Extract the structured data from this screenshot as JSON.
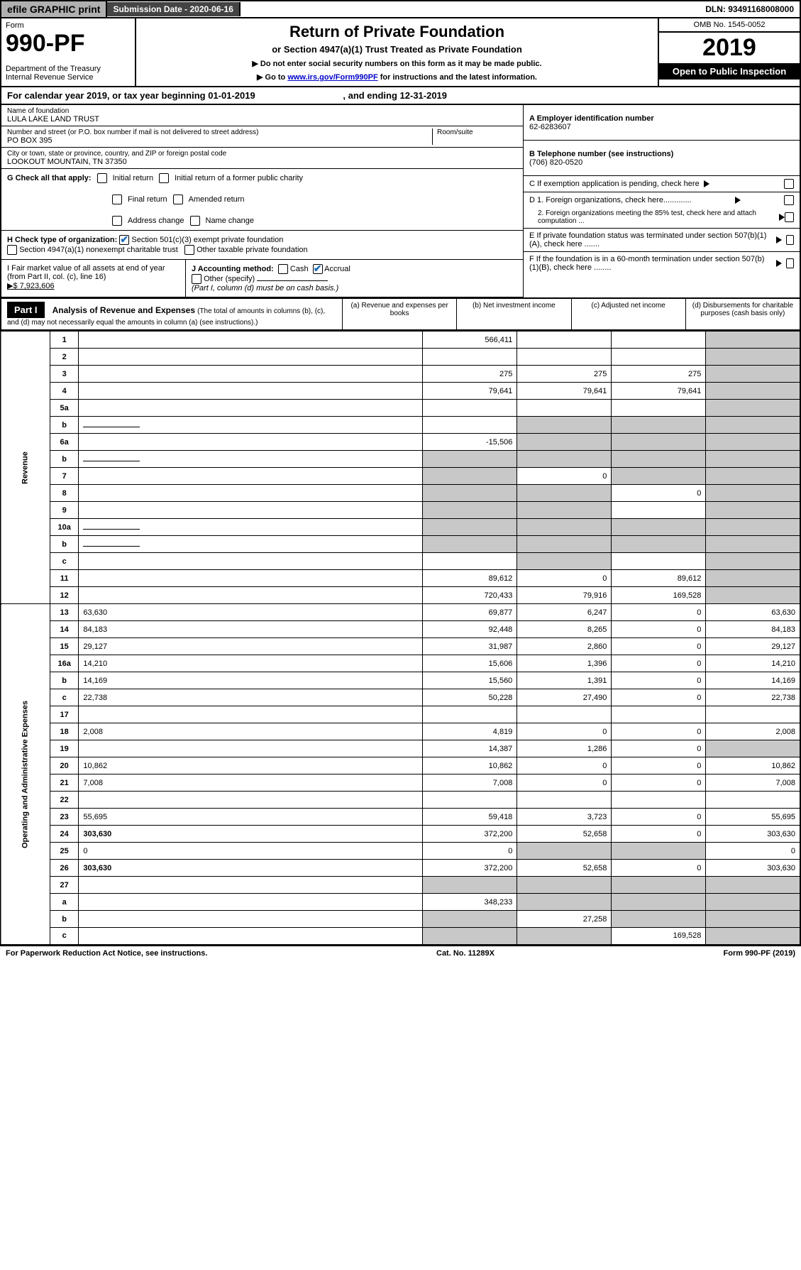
{
  "top": {
    "efile": "efile GRAPHIC print",
    "sub_label": "Submission Date - 2020-06-16",
    "dln": "DLN: 93491168008000"
  },
  "header": {
    "form_label": "Form",
    "form_num": "990-PF",
    "dept": "Department of the Treasury\nInternal Revenue Service",
    "title": "Return of Private Foundation",
    "subtitle": "or Section 4947(a)(1) Trust Treated as Private Foundation",
    "instr1": "▶ Do not enter social security numbers on this form as it may be made public.",
    "instr2": "▶ Go to ",
    "instr2_link": "www.irs.gov/Form990PF",
    "instr2_rest": " for instructions and the latest information.",
    "omb": "OMB No. 1545-0052",
    "year": "2019",
    "open": "Open to Public Inspection"
  },
  "cal": {
    "text": "For calendar year 2019, or tax year beginning 01-01-2019",
    "end": ", and ending 12-31-2019"
  },
  "org": {
    "name_label": "Name of foundation",
    "name": "LULA LAKE LAND TRUST",
    "addr_label": "Number and street (or P.O. box number if mail is not delivered to street address)",
    "addr": "PO BOX 395",
    "room_label": "Room/suite",
    "city_label": "City or town, state or province, country, and ZIP or foreign postal code",
    "city": "LOOKOUT MOUNTAIN, TN  37350",
    "ein_label": "A Employer identification number",
    "ein": "62-6283607",
    "phone_label": "B Telephone number (see instructions)",
    "phone": "(706) 820-0520",
    "c": "C If exemption application is pending, check here",
    "d1": "D 1. Foreign organizations, check here.............",
    "d2": "2. Foreign organizations meeting the 85% test, check here and attach computation ...",
    "e": "E  If private foundation status was terminated under section 507(b)(1)(A), check here .......",
    "f": "F  If the foundation is in a 60-month termination under section 507(b)(1)(B), check here ........"
  },
  "g": {
    "label": "G Check all that apply:",
    "opts": [
      "Initial return",
      "Initial return of a former public charity",
      "Final return",
      "Amended return",
      "Address change",
      "Name change"
    ]
  },
  "h": {
    "label": "H Check type of organization:",
    "o1": "Section 501(c)(3) exempt private foundation",
    "o2": "Section 4947(a)(1) nonexempt charitable trust",
    "o3": "Other taxable private foundation"
  },
  "i": {
    "label": "I Fair market value of all assets at end of year (from Part II, col. (c), line 16)",
    "val": "▶$  7,923,606",
    "j_label": "J Accounting method:",
    "j_cash": "Cash",
    "j_accrual": "Accrual",
    "j_other": "Other (specify)",
    "j_note": "(Part I, column (d) must be on cash basis.)"
  },
  "part1": {
    "tag": "Part I",
    "title": "Analysis of Revenue and Expenses",
    "sub": " (The total of amounts in columns (b), (c), and (d) may not necessarily equal the amounts in column (a) (see instructions).)",
    "cols": {
      "a": "(a)    Revenue and expenses per books",
      "b": "(b)   Net investment income",
      "c": "(c)   Adjusted net income",
      "d": "(d)   Disbursements for charitable purposes (cash basis only)"
    }
  },
  "rows": [
    {
      "n": "1",
      "d": "",
      "a": "566,411",
      "b": "",
      "c": "",
      "dg": true
    },
    {
      "n": "2",
      "d": "",
      "a": "",
      "b": "",
      "c": "",
      "dg": true,
      "nb": true
    },
    {
      "n": "3",
      "d": "",
      "a": "275",
      "b": "275",
      "c": "275",
      "dg": true
    },
    {
      "n": "4",
      "d": "",
      "a": "79,641",
      "b": "79,641",
      "c": "79,641",
      "dg": true
    },
    {
      "n": "5a",
      "d": "",
      "a": "",
      "b": "",
      "c": "",
      "dg": true
    },
    {
      "n": "b",
      "d": "",
      "a": "",
      "b": "",
      "c": "",
      "g": [
        "b",
        "c",
        "d"
      ],
      "dg": true,
      "has_line": true
    },
    {
      "n": "6a",
      "d": "",
      "a": "-15,506",
      "b": "",
      "c": "",
      "g": [
        "b",
        "c",
        "d"
      ],
      "dg": true
    },
    {
      "n": "b",
      "d": "",
      "a": "",
      "b": "",
      "c": "",
      "g": [
        "a",
        "b",
        "c",
        "d"
      ],
      "dg": true,
      "has_line": true
    },
    {
      "n": "7",
      "d": "",
      "a": "",
      "b": "0",
      "c": "",
      "g": [
        "a",
        "c",
        "d"
      ],
      "dg": true
    },
    {
      "n": "8",
      "d": "",
      "a": "",
      "b": "",
      "c": "0",
      "g": [
        "a",
        "b",
        "d"
      ],
      "dg": true
    },
    {
      "n": "9",
      "d": "",
      "a": "",
      "b": "",
      "c": "",
      "g": [
        "a",
        "b",
        "d"
      ],
      "dg": true
    },
    {
      "n": "10a",
      "d": "",
      "a": "",
      "b": "",
      "c": "",
      "g": [
        "a",
        "b",
        "c",
        "d"
      ],
      "dg": true,
      "has_line": true
    },
    {
      "n": "b",
      "d": "",
      "a": "",
      "b": "",
      "c": "",
      "g": [
        "a",
        "b",
        "c",
        "d"
      ],
      "dg": true,
      "has_line": true
    },
    {
      "n": "c",
      "d": "",
      "a": "",
      "b": "",
      "c": "",
      "g": [
        "b",
        "d"
      ],
      "dg": true
    },
    {
      "n": "11",
      "d": "",
      "a": "89,612",
      "b": "0",
      "c": "89,612",
      "dg": true
    },
    {
      "n": "12",
      "d": "",
      "a": "720,433",
      "b": "79,916",
      "c": "169,528",
      "bold": true,
      "dg": true
    },
    {
      "n": "13",
      "d": "63,630",
      "a": "69,877",
      "b": "6,247",
      "c": "0"
    },
    {
      "n": "14",
      "d": "84,183",
      "a": "92,448",
      "b": "8,265",
      "c": "0"
    },
    {
      "n": "15",
      "d": "29,127",
      "a": "31,987",
      "b": "2,860",
      "c": "0"
    },
    {
      "n": "16a",
      "d": "14,210",
      "a": "15,606",
      "b": "1,396",
      "c": "0"
    },
    {
      "n": "b",
      "d": "14,169",
      "a": "15,560",
      "b": "1,391",
      "c": "0"
    },
    {
      "n": "c",
      "d": "22,738",
      "a": "50,228",
      "b": "27,490",
      "c": "0"
    },
    {
      "n": "17",
      "d": "",
      "a": "",
      "b": "",
      "c": ""
    },
    {
      "n": "18",
      "d": "2,008",
      "a": "4,819",
      "b": "0",
      "c": "0"
    },
    {
      "n": "19",
      "d": "",
      "a": "14,387",
      "b": "1,286",
      "c": "0",
      "dg": true
    },
    {
      "n": "20",
      "d": "10,862",
      "a": "10,862",
      "b": "0",
      "c": "0"
    },
    {
      "n": "21",
      "d": "7,008",
      "a": "7,008",
      "b": "0",
      "c": "0"
    },
    {
      "n": "22",
      "d": "",
      "a": "",
      "b": "",
      "c": ""
    },
    {
      "n": "23",
      "d": "55,695",
      "a": "59,418",
      "b": "3,723",
      "c": "0"
    },
    {
      "n": "24",
      "d": "303,630",
      "a": "372,200",
      "b": "52,658",
      "c": "0",
      "bold": true
    },
    {
      "n": "25",
      "d": "0",
      "a": "0",
      "b": "",
      "c": "",
      "g": [
        "b",
        "c"
      ]
    },
    {
      "n": "26",
      "d": "303,630",
      "a": "372,200",
      "b": "52,658",
      "c": "0",
      "bold": true
    },
    {
      "n": "27",
      "d": "",
      "a": "",
      "b": "",
      "c": "",
      "g": [
        "a",
        "b",
        "c",
        "d"
      ]
    },
    {
      "n": "a",
      "d": "",
      "a": "348,233",
      "b": "",
      "c": "",
      "g": [
        "b",
        "c",
        "d"
      ],
      "bold": true
    },
    {
      "n": "b",
      "d": "",
      "a": "",
      "b": "27,258",
      "c": "",
      "g": [
        "a",
        "c",
        "d"
      ],
      "bold": true
    },
    {
      "n": "c",
      "d": "",
      "a": "",
      "b": "",
      "c": "169,528",
      "g": [
        "a",
        "b",
        "d"
      ],
      "bold": true
    }
  ],
  "side": {
    "rev": "Revenue",
    "exp": "Operating and Administrative Expenses"
  },
  "footer": {
    "left": "For Paperwork Reduction Act Notice, see instructions.",
    "mid": "Cat. No. 11289X",
    "right": "Form 990-PF (2019)"
  }
}
